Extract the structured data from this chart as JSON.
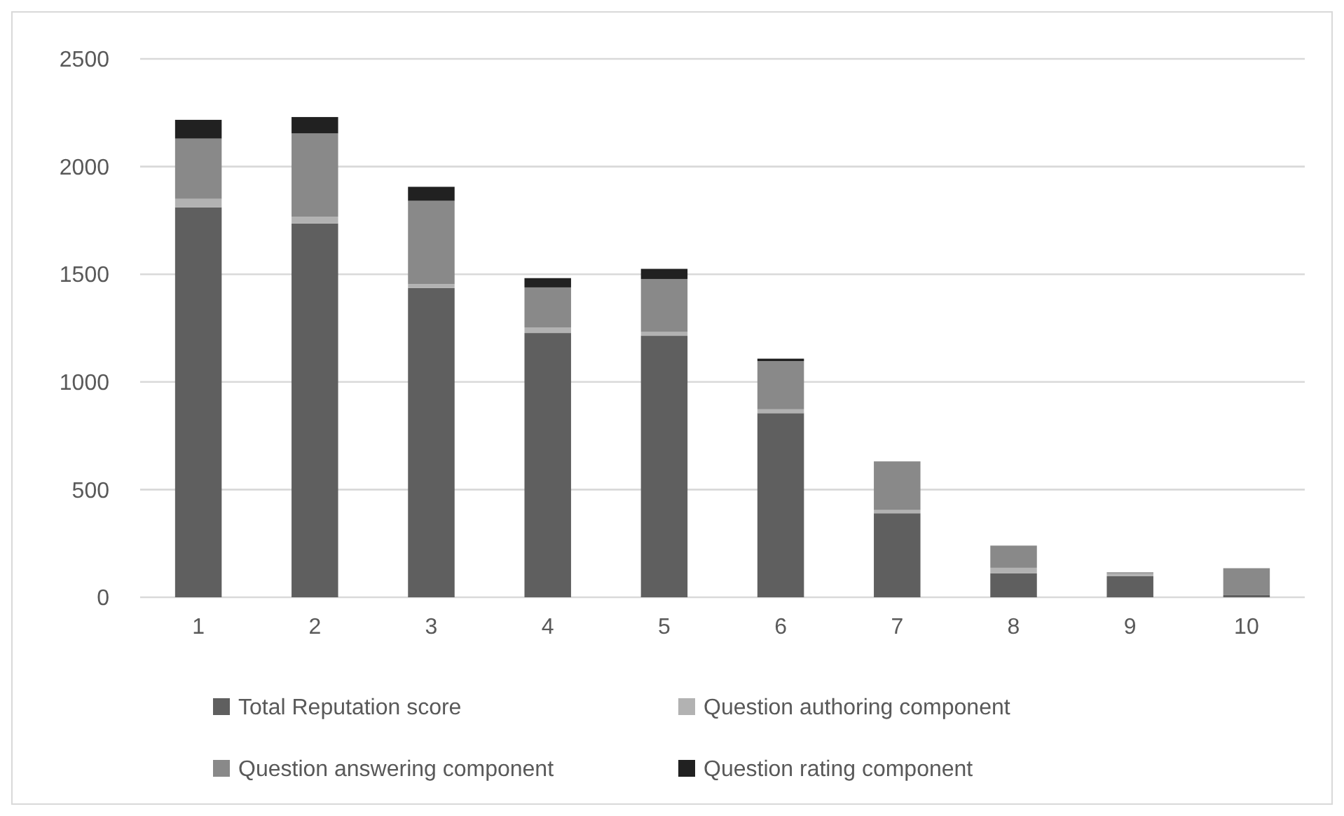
{
  "chart_data": {
    "type": "bar",
    "stacked": true,
    "categories": [
      "1",
      "2",
      "3",
      "4",
      "5",
      "6",
      "7",
      "8",
      "9",
      "10"
    ],
    "series": [
      {
        "name": "Total Reputation score",
        "color": "#5f5f5f",
        "values": [
          1811,
          1736,
          1436,
          1227,
          1214,
          855,
          390,
          111,
          98,
          10
        ]
      },
      {
        "name": "Question authoring component",
        "color": "#b2b2b2",
        "values": [
          39,
          31,
          18,
          26,
          18,
          18,
          15,
          26,
          13,
          0
        ]
      },
      {
        "name": "Question answering component",
        "color": "#898989",
        "values": [
          280,
          387,
          387,
          186,
          246,
          224,
          226,
          103,
          5,
          125
        ]
      },
      {
        "name": "Question rating component",
        "color": "#212121",
        "values": [
          87,
          76,
          65,
          43,
          47,
          11,
          0,
          0,
          0,
          0
        ]
      }
    ],
    "ylim": [
      0,
      2500
    ],
    "yticks": [
      0,
      500,
      1000,
      1500,
      2000,
      2500
    ],
    "grid": "y",
    "legend": "bottom"
  }
}
